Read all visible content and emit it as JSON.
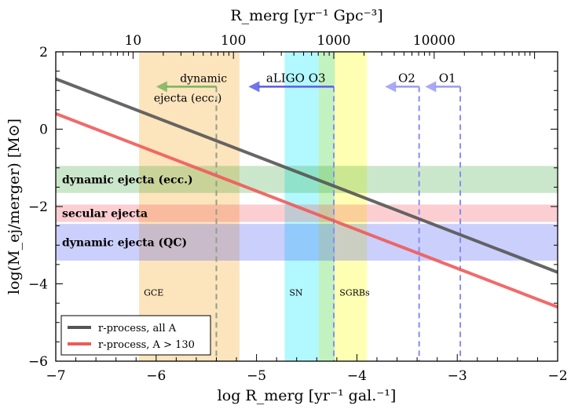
{
  "chart_data": {
    "type": "line",
    "xlabel": "log R_merg [yr⁻¹ gal.⁻¹]",
    "ylabel": "log(M_ej/merger) [M⊙]",
    "top_xlabel": "R_merg [yr⁻¹ Gpc⁻³]",
    "xlim": [
      -7,
      -2
    ],
    "ylim": [
      -6,
      2
    ],
    "xticks": [
      {
        "value": -7,
        "label": "−7"
      },
      {
        "value": -6,
        "label": "−6"
      },
      {
        "value": -5,
        "label": "−5"
      },
      {
        "value": -4,
        "label": "−4"
      },
      {
        "value": -3,
        "label": "−3"
      },
      {
        "value": -2,
        "label": "−2"
      }
    ],
    "yticks": [
      {
        "value": 2,
        "label": "2"
      },
      {
        "value": 0,
        "label": "0"
      },
      {
        "value": -2,
        "label": "−2"
      },
      {
        "value": -4,
        "label": "−4"
      },
      {
        "value": -6,
        "label": "−6"
      }
    ],
    "top_ticks": [
      {
        "value": -6.23,
        "label": "10"
      },
      {
        "value": -5.23,
        "label": "100"
      },
      {
        "value": -4.23,
        "label": "1000"
      },
      {
        "value": -3.23,
        "label": "10000"
      }
    ],
    "series": [
      {
        "name": "r-process, all A",
        "color": "#555555",
        "x": [
          -7,
          -2
        ],
        "y": [
          1.3,
          -3.7
        ]
      },
      {
        "name": "r-process, A > 130",
        "color": "#ef5a5a",
        "x": [
          -7,
          -2
        ],
        "y": [
          0.4,
          -4.6
        ]
      }
    ],
    "horizontal_bands": [
      {
        "name": "dynamic_ecc",
        "label": "dynamic ejecta (ecc.)",
        "y0": -1.65,
        "y1": -0.95,
        "color": "#2e9e2e",
        "opacity": 0.25
      },
      {
        "name": "secular",
        "label": "secular ejecta",
        "y0": -2.4,
        "y1": -1.95,
        "color": "#f0404a",
        "opacity": 0.25
      },
      {
        "name": "dynamic_qc",
        "label": "dynamic ejecta (QC)",
        "y0": -3.4,
        "y1": -2.45,
        "color": "#3040ef",
        "opacity": 0.25
      }
    ],
    "vertical_bands": [
      {
        "name": "gce",
        "label": "GCE",
        "x0": -6.17,
        "x1": -5.17,
        "color": "#f6a623",
        "opacity": 0.3,
        "center": -5.4
      },
      {
        "name": "sn",
        "label": "SN",
        "x0": -4.72,
        "x1": -4.38,
        "color": "#00e8ff",
        "opacity": 0.3
      },
      {
        "name": "green",
        "label": "",
        "x0": -4.38,
        "x1": -4.22,
        "color": "#34d52a",
        "opacity": 0.3
      },
      {
        "name": "sgrbs",
        "label": "SGRBs",
        "x0": -4.22,
        "x1": -3.9,
        "color": "#ffff40",
        "opacity": 0.4
      }
    ],
    "vertical_lines": [
      {
        "name": "gce-center",
        "x": -5.4,
        "color": "#8fa08a"
      },
      {
        "name": "aligo",
        "x": -4.23,
        "color": "#8a8cf0"
      },
      {
        "name": "o2",
        "x": -3.38,
        "color": "#8a8cf0"
      },
      {
        "name": "o1",
        "x": -2.97,
        "color": "#8a8cf0"
      }
    ],
    "arrows": [
      {
        "name": "dynamic-ecc-arrow",
        "label_lines": [
          "dynamic",
          "ejecta (ecc.)"
        ],
        "x_start": -5.4,
        "x_end": -6.0,
        "y": 1.1,
        "color": "#7ab55a"
      },
      {
        "name": "aligo-arrow",
        "label_lines": [
          "aLIGO O3"
        ],
        "x_start": -4.23,
        "x_end": -5.08,
        "y": 1.1,
        "color": "#5a5aef"
      },
      {
        "name": "o2-arrow",
        "label_lines": [
          "O2"
        ],
        "x_start": -3.38,
        "x_end": -3.72,
        "y": 1.1,
        "color": "#9a9af5"
      },
      {
        "name": "o1-arrow",
        "label_lines": [
          "O1"
        ],
        "x_start": -2.97,
        "x_end": -3.32,
        "y": 1.1,
        "color": "#9a9af5"
      }
    ],
    "legend": {
      "position": "lower-left"
    }
  },
  "colors": {
    "axis": "#000000",
    "background": "#ffffff"
  }
}
